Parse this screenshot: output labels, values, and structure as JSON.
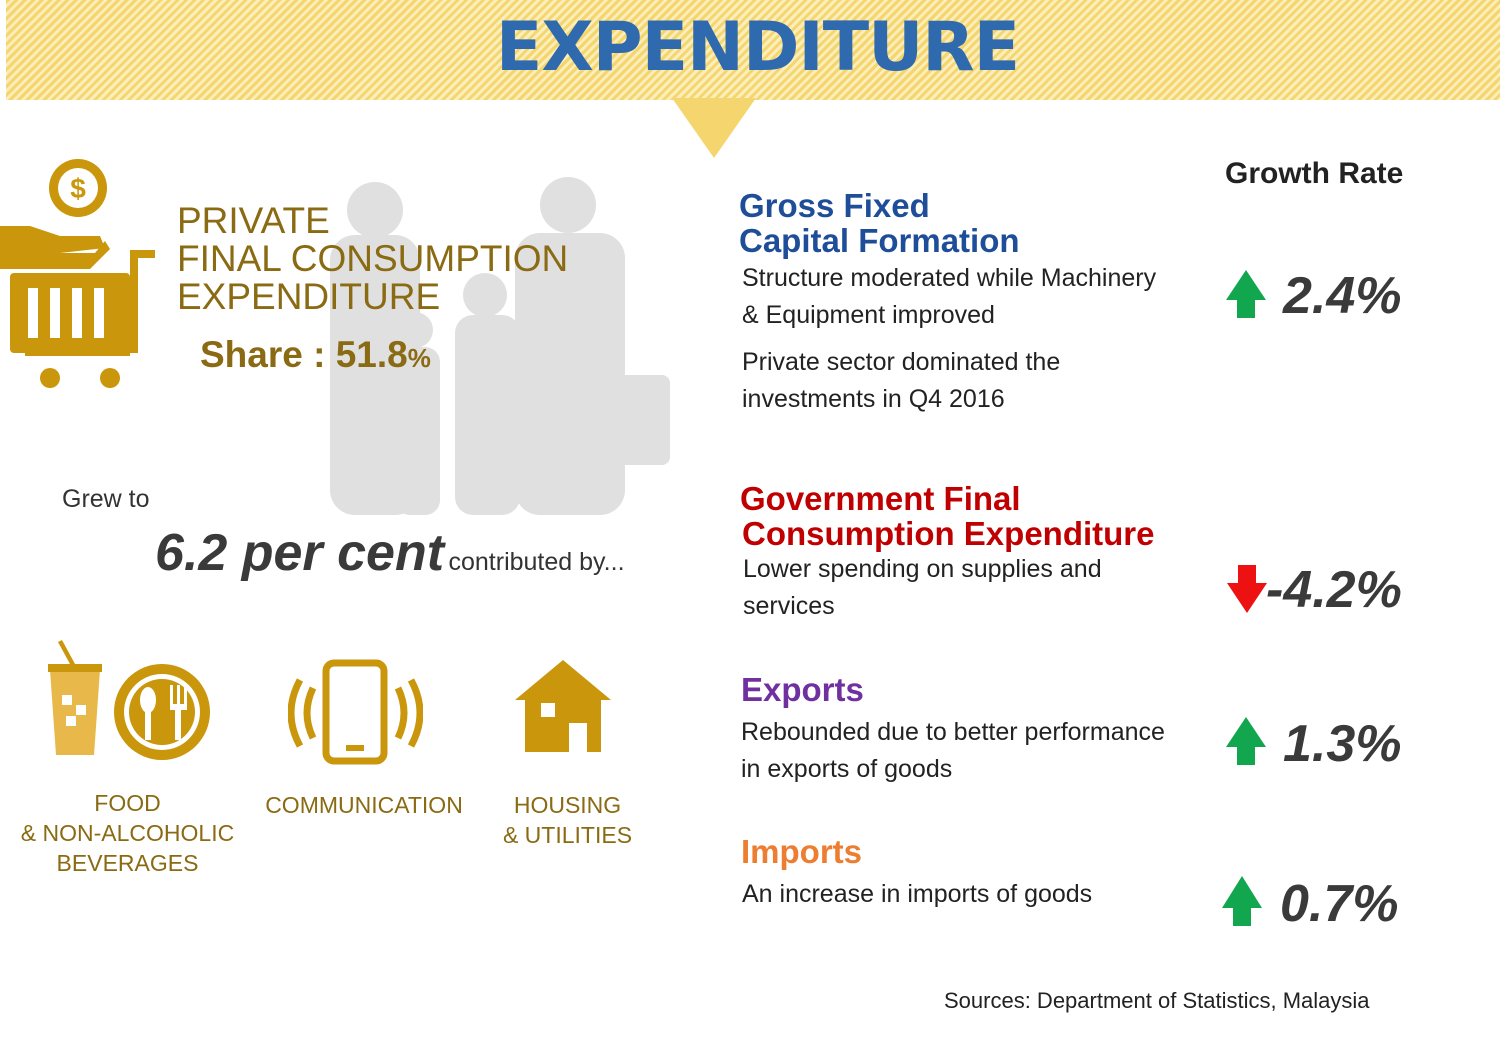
{
  "title": "EXPENDITURE",
  "private": {
    "heading_lines": [
      "PRIVATE",
      "FINAL CONSUMPTION",
      "EXPENDITURE"
    ],
    "share_label": "Share : ",
    "share_value": "51.8",
    "share_unit": "%",
    "grew_to": "Grew to",
    "growth": "6.2 per cent",
    "contributed": "contributed by...",
    "categories": [
      {
        "lines": [
          "FOOD",
          "& NON-ALCOHOLIC",
          "BEVERAGES"
        ],
        "icon": "drink-and-dining-icon"
      },
      {
        "lines": [
          "COMMUNICATION"
        ],
        "icon": "mobile-phone-icon"
      },
      {
        "lines": [
          "HOUSING",
          "& UTILITIES"
        ],
        "icon": "house-icon"
      }
    ]
  },
  "growth_rate_header": "Growth Rate",
  "components": [
    {
      "title_lines": [
        "Gross Fixed",
        "Capital Formation"
      ],
      "color": "#1f4e99",
      "desc_lines": [
        "Structure moderated while Machinery",
        "& Equipment improved"
      ],
      "desc2_lines": [
        "Private sector dominated the",
        "investments in Q4 2016"
      ],
      "rate": "2.4%",
      "direction": "up"
    },
    {
      "title_lines": [
        "Government Final",
        "Consumption Expenditure"
      ],
      "color": "#c00000",
      "desc_lines": [
        "Lower spending on supplies and",
        "services"
      ],
      "rate": "-4.2%",
      "direction": "down"
    },
    {
      "title_lines": [
        "Exports"
      ],
      "color": "#7030a0",
      "desc_lines": [
        "Rebounded due to better performance",
        "in exports of goods"
      ],
      "rate": "1.3%",
      "direction": "up"
    },
    {
      "title_lines": [
        "Imports"
      ],
      "color": "#ed7d31",
      "desc_lines": [
        "An increase in imports of goods"
      ],
      "rate": "0.7%",
      "direction": "up"
    }
  ],
  "colors": {
    "gold": "#c9960c",
    "up": "#12a64f",
    "down": "#ee1111"
  },
  "source": "Sources: Department of Statistics, Malaysia"
}
